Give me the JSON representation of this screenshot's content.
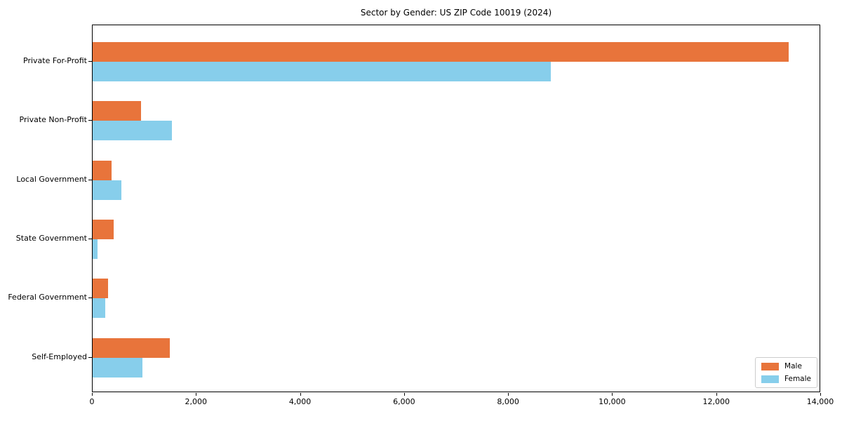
{
  "figure": {
    "background": "#ffffff",
    "spine_color": "#000000",
    "legend_border_color": "#cccccc"
  },
  "chart_data": {
    "type": "bar",
    "orientation": "horizontal",
    "title": "Sector by Gender: US ZIP Code 10019 (2024)",
    "categories": [
      "Private For-Profit",
      "Private Non-Profit",
      "Local Government",
      "State Government",
      "Federal Government",
      "Self-Employed"
    ],
    "series": [
      {
        "name": "Male",
        "color": "#e8743b",
        "values": [
          13400,
          930,
          360,
          400,
          300,
          1480
        ]
      },
      {
        "name": "Female",
        "color": "#87ceeb",
        "values": [
          8830,
          1530,
          550,
          90,
          240,
          960
        ]
      }
    ],
    "xlabel": "",
    "ylabel": "",
    "xlim": [
      0,
      14000
    ],
    "xticks": [
      0,
      2000,
      4000,
      6000,
      8000,
      10000,
      12000,
      14000
    ],
    "xtick_labels": [
      "0",
      "2,000",
      "4,000",
      "6,000",
      "8,000",
      "10,000",
      "12,000",
      "14,000"
    ],
    "grid": false,
    "legend": {
      "position": "lower right",
      "entries": [
        "Male",
        "Female"
      ]
    }
  }
}
